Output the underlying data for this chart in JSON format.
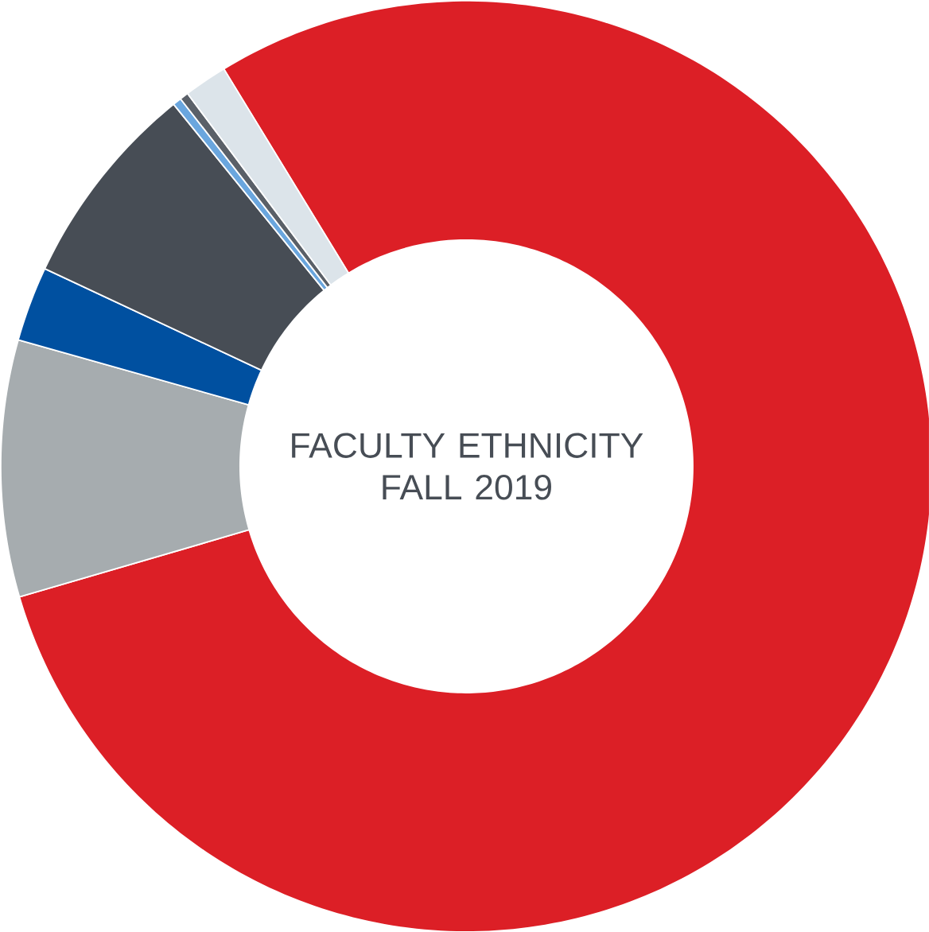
{
  "chart_data": {
    "type": "donut",
    "title": "FACULTY ETHNICITY FALL 2019",
    "categories": [
      null,
      null,
      null,
      null,
      null,
      null,
      null
    ],
    "values": [
      79.2,
      8.9,
      2.6,
      7.2,
      0.3,
      0.3,
      1.5
    ],
    "colors": [
      "#dc1f26",
      "#a6acaf",
      "#0050a0",
      "#474d55",
      "#6aa6de",
      "#5a6068",
      "#dce4ea"
    ]
  }
}
